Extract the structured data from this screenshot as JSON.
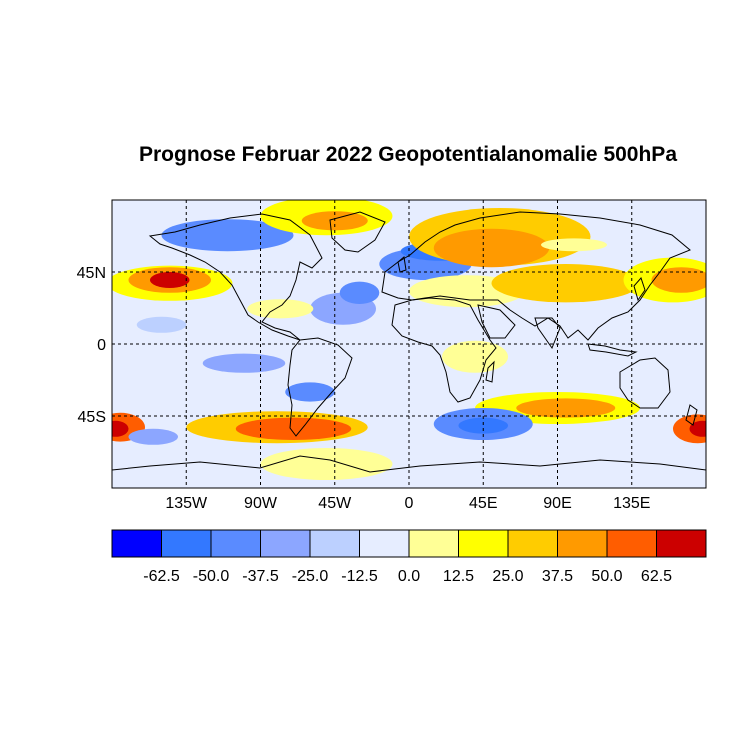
{
  "title": "Prognose Februar 2022 Geopotentialanomalie 500hPa",
  "map": {
    "lon_range": [
      -180,
      180
    ],
    "lat_range": [
      -90,
      90
    ],
    "gridlines": "dashed",
    "lon_ticks": [
      {
        "value": -135,
        "label": "135W"
      },
      {
        "value": -90,
        "label": "90W"
      },
      {
        "value": -45,
        "label": "45W"
      },
      {
        "value": 0,
        "label": "0"
      },
      {
        "value": 45,
        "label": "45E"
      },
      {
        "value": 90,
        "label": "90E"
      },
      {
        "value": 135,
        "label": "135E"
      }
    ],
    "lat_ticks": [
      {
        "value": 45,
        "label": "45N"
      },
      {
        "value": 0,
        "label": "0"
      },
      {
        "value": -45,
        "label": "45S"
      }
    ],
    "anomaly_regions": [
      {
        "lon": -145,
        "lat": 38,
        "rx": 38,
        "ry": 11,
        "level": 2
      },
      {
        "lon": -145,
        "lat": 40,
        "rx": 25,
        "ry": 8,
        "level": 4
      },
      {
        "lon": -145,
        "lat": 40,
        "rx": 12,
        "ry": 5,
        "level": 6
      },
      {
        "lon": -150,
        "lat": 12,
        "rx": 15,
        "ry": 5,
        "level": -1
      },
      {
        "lon": -110,
        "lat": 68,
        "rx": 40,
        "ry": 10,
        "level": -3
      },
      {
        "lon": -40,
        "lat": 22,
        "rx": 20,
        "ry": 10,
        "level": -2
      },
      {
        "lon": -30,
        "lat": 32,
        "rx": 12,
        "ry": 7,
        "level": -3
      },
      {
        "lon": -78,
        "lat": 22,
        "rx": 20,
        "ry": 6,
        "level": 1
      },
      {
        "lon": -50,
        "lat": 80,
        "rx": 40,
        "ry": 12,
        "level": 2
      },
      {
        "lon": -45,
        "lat": 77,
        "rx": 20,
        "ry": 6,
        "level": 4
      },
      {
        "lon": 10,
        "lat": 50,
        "rx": 28,
        "ry": 10,
        "level": -3
      },
      {
        "lon": 20,
        "lat": 58,
        "rx": 25,
        "ry": 6,
        "level": -4
      },
      {
        "lon": 55,
        "lat": 67,
        "rx": 55,
        "ry": 18,
        "level": 3
      },
      {
        "lon": 50,
        "lat": 60,
        "rx": 35,
        "ry": 12,
        "level": 4
      },
      {
        "lon": 35,
        "lat": 33,
        "rx": 35,
        "ry": 10,
        "level": 1
      },
      {
        "lon": 95,
        "lat": 38,
        "rx": 45,
        "ry": 12,
        "level": 3
      },
      {
        "lon": 160,
        "lat": 40,
        "rx": 30,
        "ry": 14,
        "level": 2
      },
      {
        "lon": 165,
        "lat": 40,
        "rx": 18,
        "ry": 8,
        "level": 4
      },
      {
        "lon": 100,
        "lat": 62,
        "rx": 20,
        "ry": 4,
        "level": 1
      },
      {
        "lon": -100,
        "lat": -12,
        "rx": 25,
        "ry": 6,
        "level": -2
      },
      {
        "lon": -60,
        "lat": -30,
        "rx": 15,
        "ry": 6,
        "level": -3
      },
      {
        "lon": 40,
        "lat": -8,
        "rx": 20,
        "ry": 10,
        "level": 1
      },
      {
        "lon": -80,
        "lat": -52,
        "rx": 55,
        "ry": 10,
        "level": 3
      },
      {
        "lon": -70,
        "lat": -53,
        "rx": 35,
        "ry": 7,
        "level": 5
      },
      {
        "lon": -175,
        "lat": -52,
        "rx": 15,
        "ry": 9,
        "level": 5
      },
      {
        "lon": -178,
        "lat": -53,
        "rx": 8,
        "ry": 5,
        "level": 6
      },
      {
        "lon": 175,
        "lat": -53,
        "rx": 15,
        "ry": 9,
        "level": 5
      },
      {
        "lon": 178,
        "lat": -53,
        "rx": 8,
        "ry": 5,
        "level": 6
      },
      {
        "lon": 90,
        "lat": -40,
        "rx": 50,
        "ry": 10,
        "level": 2
      },
      {
        "lon": 95,
        "lat": -40,
        "rx": 30,
        "ry": 6,
        "level": 4
      },
      {
        "lon": 45,
        "lat": -50,
        "rx": 30,
        "ry": 10,
        "level": -3
      },
      {
        "lon": 45,
        "lat": -51,
        "rx": 15,
        "ry": 5,
        "level": -4
      },
      {
        "lon": -155,
        "lat": -58,
        "rx": 15,
        "ry": 5,
        "level": -2
      },
      {
        "lon": -50,
        "lat": -75,
        "rx": 40,
        "ry": 10,
        "level": 1
      }
    ]
  },
  "colorbar": {
    "colors": [
      "#0000ff",
      "#3378ff",
      "#5a8bff",
      "#8ca6ff",
      "#bcd0ff",
      "#e6edff",
      "#ffff96",
      "#ffff00",
      "#ffcc00",
      "#ff9a00",
      "#ff5d00",
      "#cc0000"
    ],
    "labels": [
      "-62.5",
      "-50.0",
      "-37.5",
      "-25.0",
      "-12.5",
      "0.0",
      "12.5",
      "25.0",
      "37.5",
      "50.0",
      "62.5"
    ]
  }
}
